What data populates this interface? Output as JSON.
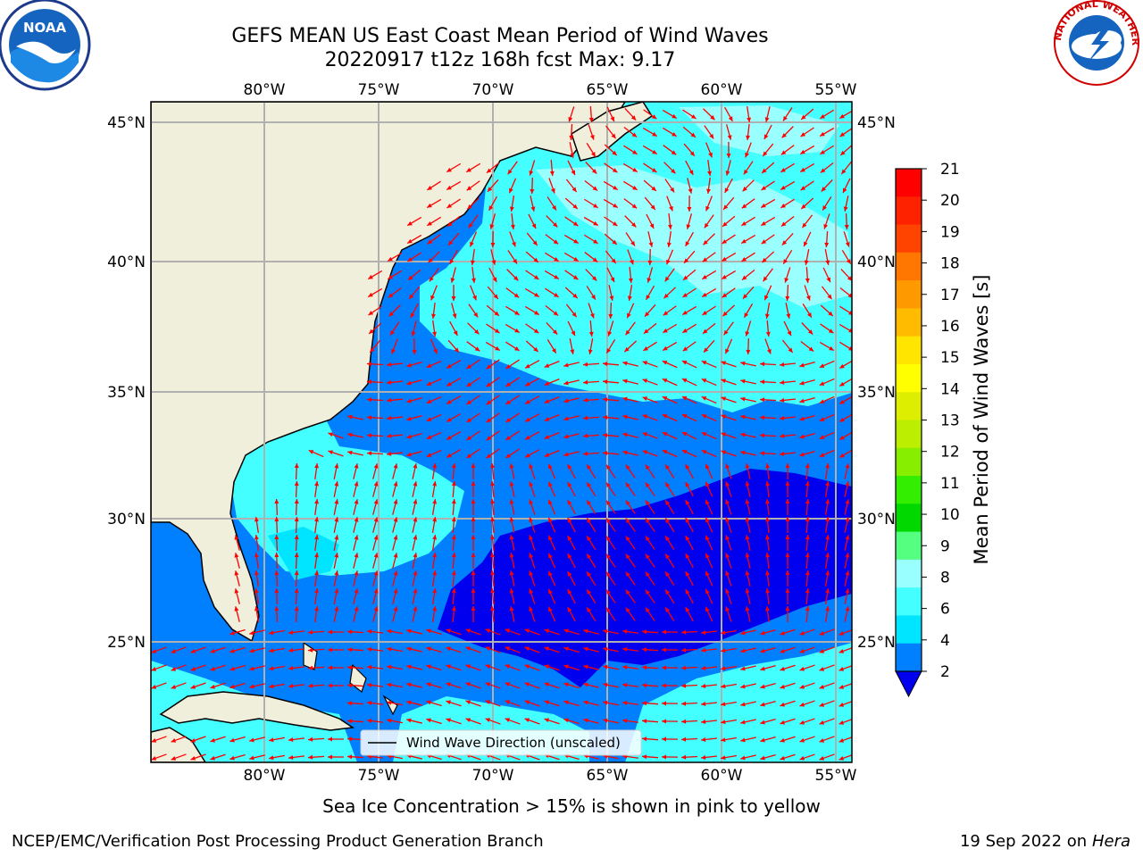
{
  "title": {
    "line1": "GEFS MEAN US East Coast Mean Period of Wind Waves",
    "line2": "20220917 t12z 168h fcst   Max: 9.17"
  },
  "map": {
    "lon_ticks": [
      "80°W",
      "75°W",
      "70°W",
      "65°W",
      "60°W",
      "55°W"
    ],
    "lat_ticks": [
      "45°N",
      "40°N",
      "35°N",
      "30°N",
      "25°N"
    ],
    "legend_label": "Wind Wave Direction (unscaled)",
    "arrow_color": "#ff0000",
    "land_color": "#efefdc"
  },
  "colorbar": {
    "label": "Mean Period of Wind Waves [s]",
    "ticks": [
      "2",
      "4",
      "6",
      "8",
      "9",
      "10",
      "11",
      "12",
      "13",
      "14",
      "15",
      "16",
      "17",
      "18",
      "19",
      "20",
      "21"
    ],
    "colors": [
      "#0080ff",
      "#00e5ff",
      "#44ffff",
      "#99ffff",
      "#55ff80",
      "#00d800",
      "#33ee00",
      "#88ee00",
      "#bbee00",
      "#ddee00",
      "#ffff00",
      "#ffe500",
      "#ffbb00",
      "#ff9900",
      "#ff7700",
      "#ff4400",
      "#ff2200",
      "#ff0000"
    ],
    "under_color": "#0000ee"
  },
  "note": "Sea Ice Concentration > 15% is shown in pink to yellow",
  "footer": {
    "left": "NCEP/EMC/Verification Post Processing Product Generation Branch",
    "date": "19 Sep 2022 on",
    "machine": "Hera"
  },
  "logos": {
    "noaa": "NOAA",
    "nws": "NATIONAL WEATHER SERVICE"
  }
}
